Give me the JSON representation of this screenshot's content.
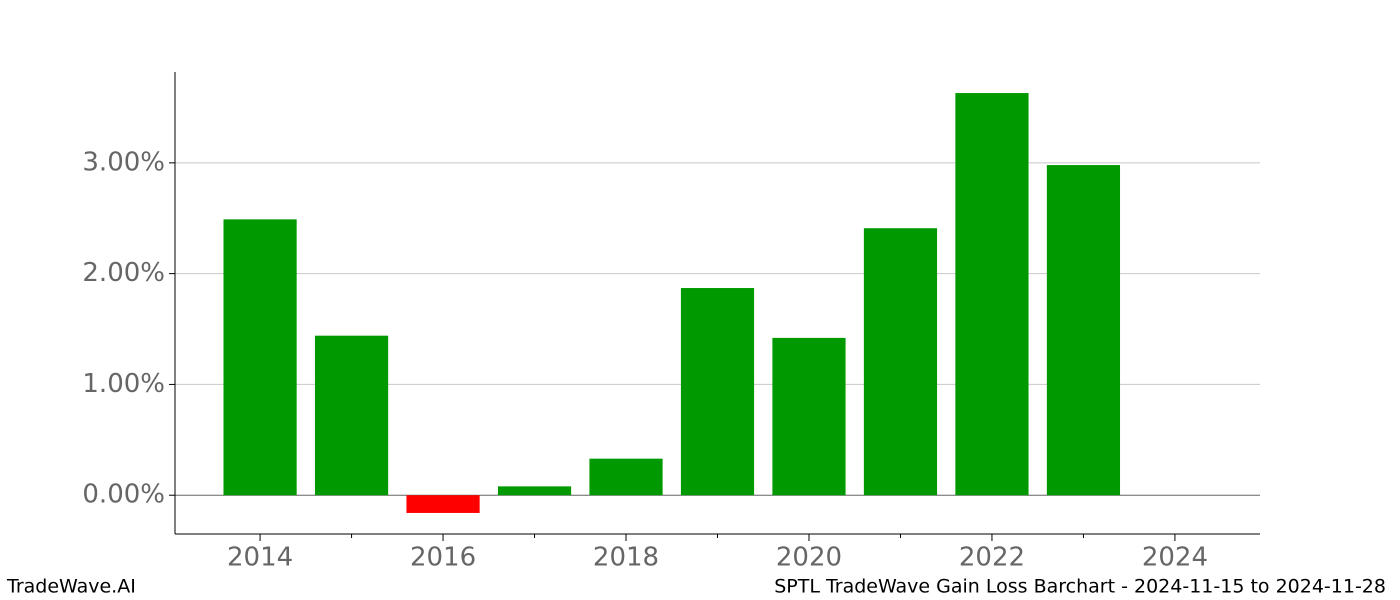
{
  "chart_data": {
    "type": "bar",
    "title": "SPTL TradeWave Gain Loss Barchart - 2024-11-15 to 2024-11-28",
    "watermark": "TradeWave.AI",
    "x": [
      2014,
      2015,
      2016,
      2017,
      2018,
      2019,
      2020,
      2021,
      2022,
      2023
    ],
    "values": [
      2.49,
      1.44,
      -0.16,
      0.08,
      0.33,
      1.87,
      1.42,
      2.41,
      3.63,
      2.98
    ],
    "positive_color": "#009900",
    "negative_color": "#ff0000",
    "bar_width": 0.8,
    "xlim": [
      2013.07,
      2024.93
    ],
    "xticks": [
      2014,
      2016,
      2018,
      2020,
      2022,
      2024
    ],
    "xticks_minor": [
      2015,
      2017,
      2019,
      2021,
      2023
    ],
    "ylim": [
      -0.35,
      3.82
    ],
    "yticks": [
      {
        "value": 0,
        "label": "0.00%"
      },
      {
        "value": 1,
        "label": "1.00%"
      },
      {
        "value": 2,
        "label": "2.00%"
      },
      {
        "value": 3,
        "label": "3.00%"
      }
    ],
    "grid": true
  }
}
